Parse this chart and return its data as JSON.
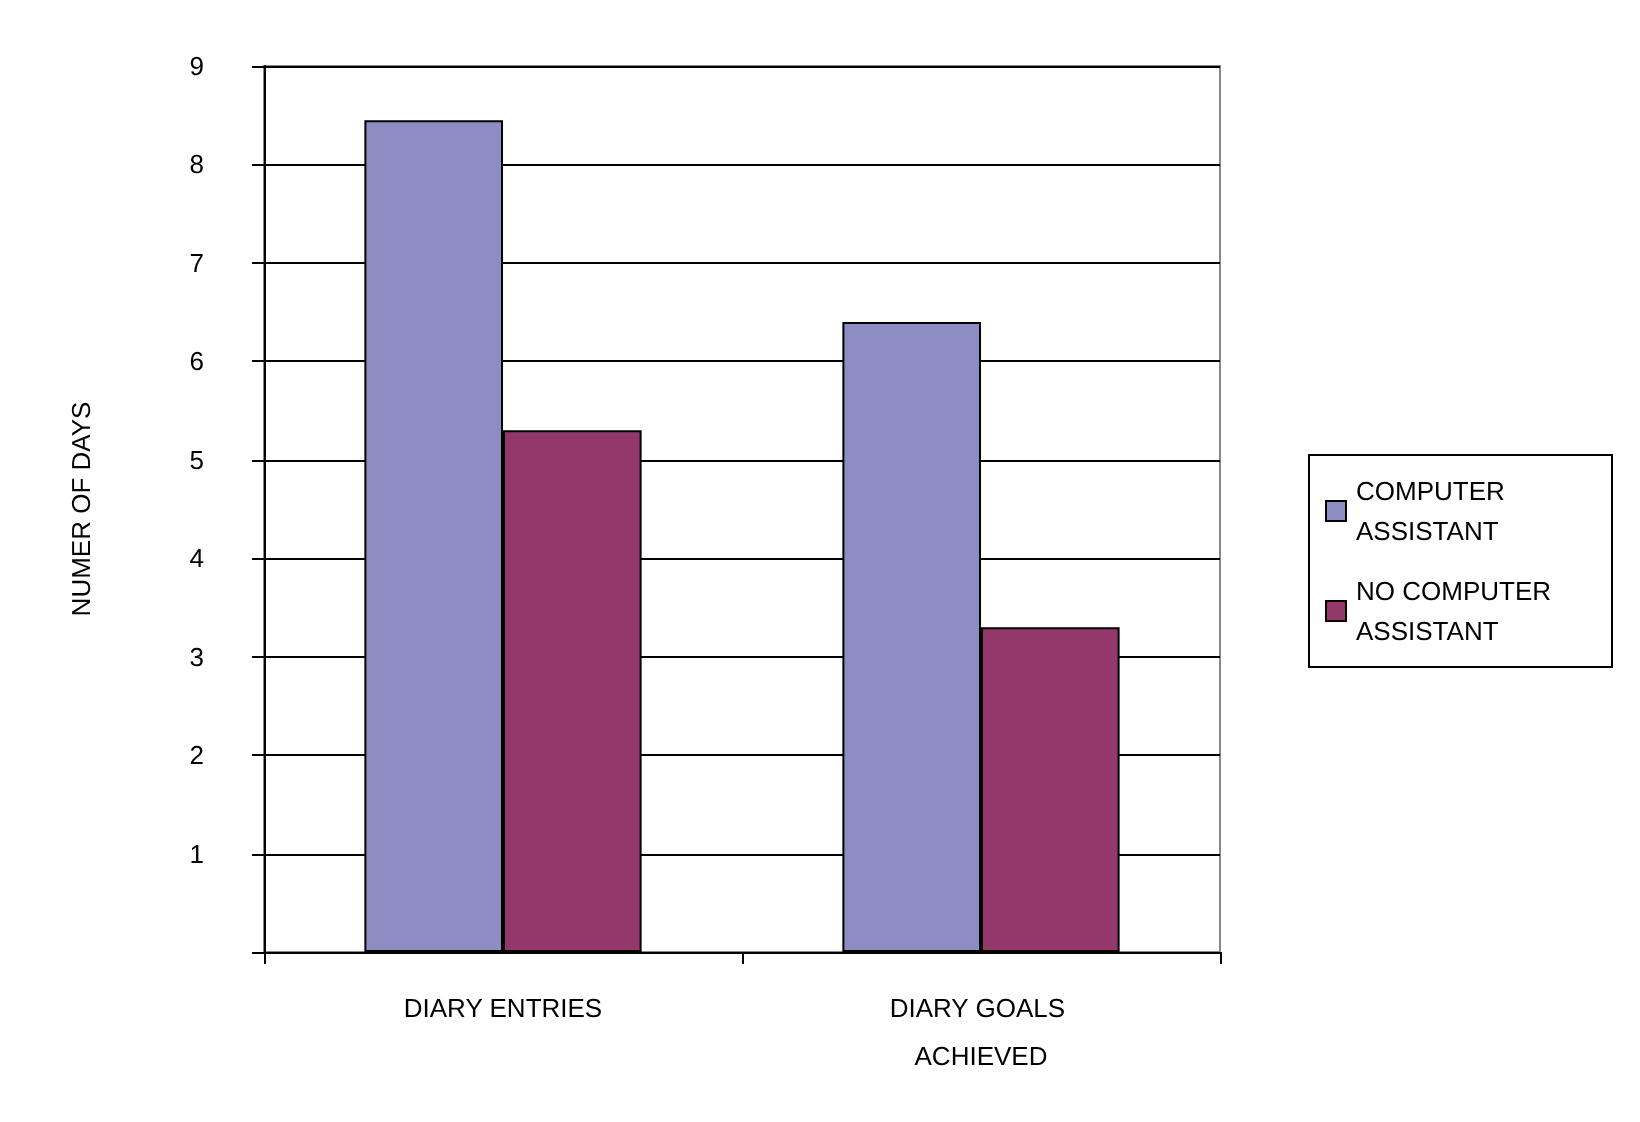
{
  "chart_data": {
    "type": "bar",
    "ylabel": "NUMER OF DAYS",
    "categories": [
      "DIARY ENTRIES",
      "DIARY GOALS ACHIEVED"
    ],
    "series": [
      {
        "name": "COMPUTER ASSISTANT",
        "color": "#8b8dc3",
        "values": [
          8.45,
          6.4
        ]
      },
      {
        "name": "NO COMPUTER ASSISTANT",
        "color": "#94386b",
        "values": [
          5.3,
          3.3
        ]
      }
    ],
    "ylim": [
      0,
      9
    ],
    "yticks": [
      {
        "value": 0,
        "label": null
      },
      1,
      2,
      3,
      4,
      5,
      6,
      7,
      8,
      9
    ],
    "grid": "y",
    "legend": "right"
  }
}
